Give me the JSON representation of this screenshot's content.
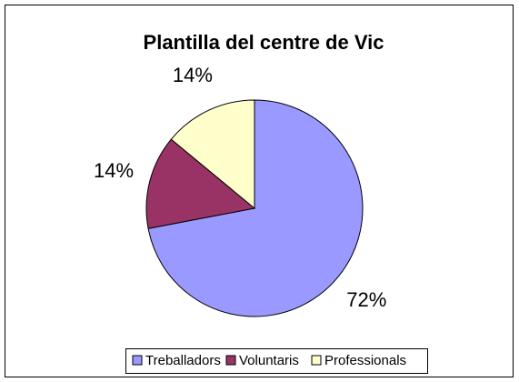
{
  "chart_data": {
    "type": "pie",
    "title": "Plantilla del centre de Vic",
    "categories": [
      "Treballadors",
      "Voluntaris",
      "Professionals"
    ],
    "values": [
      72,
      14,
      14
    ],
    "value_labels": [
      "72%",
      "14%",
      "14%"
    ],
    "colors": [
      "#9999ff",
      "#993366",
      "#ffffcc"
    ],
    "legend": "bottom"
  }
}
